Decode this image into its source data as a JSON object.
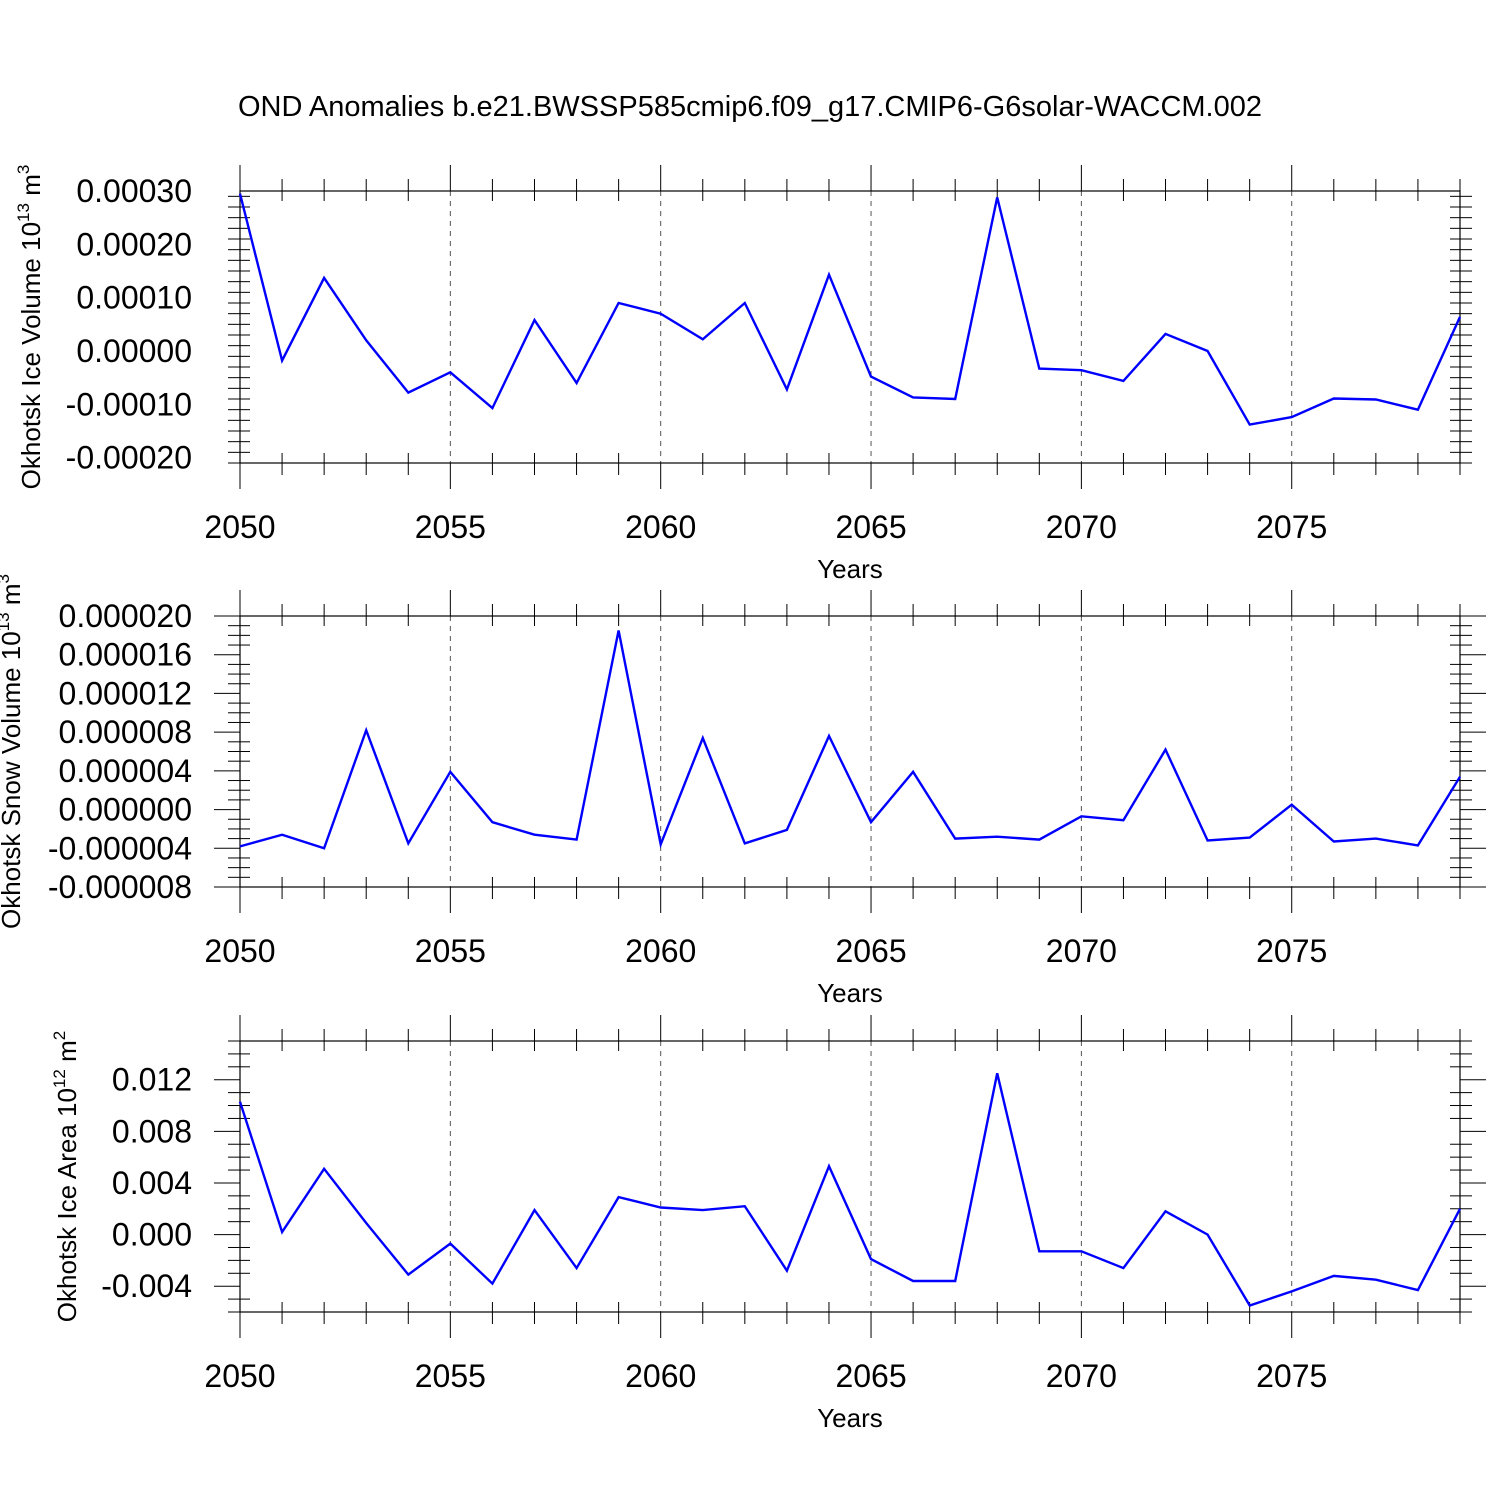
{
  "title": "OND Anomalies b.e21.BWSSP585cmip6.f09_g17.CMIP6-G6solar-WACCM.002",
  "line_color": "#0000ff",
  "chart_data": [
    {
      "type": "line",
      "ylabel": {
        "main": "Okhotsk Ice Volume 10",
        "exp": "13",
        "unit": " m",
        "unit_exp": "3"
      },
      "xlabel": "Years",
      "xlim": [
        2050,
        2079
      ],
      "ylim": [
        -0.00021,
        0.0003
      ],
      "x_ticks": [
        2050,
        2055,
        2060,
        2065,
        2070,
        2075
      ],
      "x_minor_step": 1,
      "y_ticks": [
        -0.0002,
        -0.0001,
        0.0,
        0.0001,
        0.0002,
        0.0003
      ],
      "y_tick_labels": [
        "-0.00020",
        "-0.00010",
        "0.00000",
        "0.00010",
        "0.00020",
        "0.00030"
      ],
      "y_minor_step": 2e-05,
      "grid": "dashed vertical at major x ticks",
      "x": [
        2050,
        2051,
        2052,
        2053,
        2054,
        2055,
        2056,
        2057,
        2058,
        2059,
        2060,
        2061,
        2062,
        2063,
        2064,
        2065,
        2066,
        2067,
        2068,
        2069,
        2070,
        2071,
        2072,
        2073,
        2074,
        2075,
        2076,
        2077,
        2078,
        2079
      ],
      "series": [
        {
          "values": [
            0.000295,
            -1.8e-05,
            0.000137,
            2e-05,
            -7.8e-05,
            -4e-05,
            -0.000107,
            5.8e-05,
            -6e-05,
            9e-05,
            7e-05,
            2.2e-05,
            9e-05,
            -7.2e-05,
            0.000143,
            -4.8e-05,
            -8.7e-05,
            -9e-05,
            0.000288,
            -3.3e-05,
            -3.6e-05,
            -5.6e-05,
            3.2e-05,
            0.0,
            -0.000138,
            -0.000124,
            -8.9e-05,
            -9.1e-05,
            -0.00011,
            6.4e-05
          ]
        }
      ]
    },
    {
      "type": "line",
      "ylabel": {
        "main": "Okhotsk Snow Volume 10",
        "exp": "13",
        "unit": " m",
        "unit_exp": "3"
      },
      "xlabel": "Years",
      "xlim": [
        2050,
        2079
      ],
      "ylim": [
        -8e-06,
        2e-05
      ],
      "x_ticks": [
        2050,
        2055,
        2060,
        2065,
        2070,
        2075
      ],
      "x_minor_step": 1,
      "y_ticks": [
        -8e-06,
        -4e-06,
        0.0,
        4e-06,
        8e-06,
        1.2e-05,
        1.6e-05,
        2e-05
      ],
      "y_tick_labels": [
        "-0.000008",
        "-0.000004",
        "0.000000",
        "0.000004",
        "0.000008",
        "0.000012",
        "0.000016",
        "0.000020"
      ],
      "y_minor_step": 1e-06,
      "grid": "dashed vertical at major x ticks",
      "x": [
        2050,
        2051,
        2052,
        2053,
        2054,
        2055,
        2056,
        2057,
        2058,
        2059,
        2060,
        2061,
        2062,
        2063,
        2064,
        2065,
        2066,
        2067,
        2068,
        2069,
        2070,
        2071,
        2072,
        2073,
        2074,
        2075,
        2076,
        2077,
        2078,
        2079
      ],
      "series": [
        {
          "values": [
            -3.8e-06,
            -2.6e-06,
            -4e-06,
            8.2e-06,
            -3.5e-06,
            3.9e-06,
            -1.3e-06,
            -2.6e-06,
            -3.1e-06,
            1.85e-05,
            -3.6e-06,
            7.4e-06,
            -3.5e-06,
            -2.1e-06,
            7.6e-06,
            -1.3e-06,
            3.9e-06,
            -3e-06,
            -2.8e-06,
            -3.1e-06,
            -7e-07,
            -1.1e-06,
            6.2e-06,
            -3.2e-06,
            -2.9e-06,
            5e-07,
            -3.3e-06,
            -3e-06,
            -3.7e-06,
            3.4e-06
          ]
        }
      ]
    },
    {
      "type": "line",
      "ylabel": {
        "main": "Okhotsk Ice Area 10",
        "exp": "12",
        "unit": " m",
        "unit_exp": "2"
      },
      "xlabel": "Years",
      "xlim": [
        2050,
        2079
      ],
      "ylim": [
        -0.006,
        0.015
      ],
      "x_ticks": [
        2050,
        2055,
        2060,
        2065,
        2070,
        2075
      ],
      "x_minor_step": 1,
      "y_ticks": [
        -0.004,
        0.0,
        0.004,
        0.008,
        0.012
      ],
      "y_tick_labels": [
        "-0.004",
        "0.000",
        "0.004",
        "0.008",
        "0.012"
      ],
      "y_minor_step": 0.001,
      "grid": "dashed vertical at major x ticks",
      "x": [
        2050,
        2051,
        2052,
        2053,
        2054,
        2055,
        2056,
        2057,
        2058,
        2059,
        2060,
        2061,
        2062,
        2063,
        2064,
        2065,
        2066,
        2067,
        2068,
        2069,
        2070,
        2071,
        2072,
        2073,
        2074,
        2075,
        2076,
        2077,
        2078,
        2079
      ],
      "series": [
        {
          "values": [
            0.0103,
            0.0002,
            0.0051,
            0.0009,
            -0.0031,
            -0.0007,
            -0.0038,
            0.0019,
            -0.0026,
            0.0029,
            0.0021,
            0.0019,
            0.0022,
            -0.0028,
            0.0053,
            -0.0019,
            -0.0036,
            -0.0036,
            0.0125,
            -0.0013,
            -0.0013,
            -0.0026,
            0.0018,
            0.0,
            -0.0055,
            -0.0044,
            -0.0032,
            -0.0035,
            -0.0043,
            0.002
          ]
        }
      ]
    }
  ]
}
